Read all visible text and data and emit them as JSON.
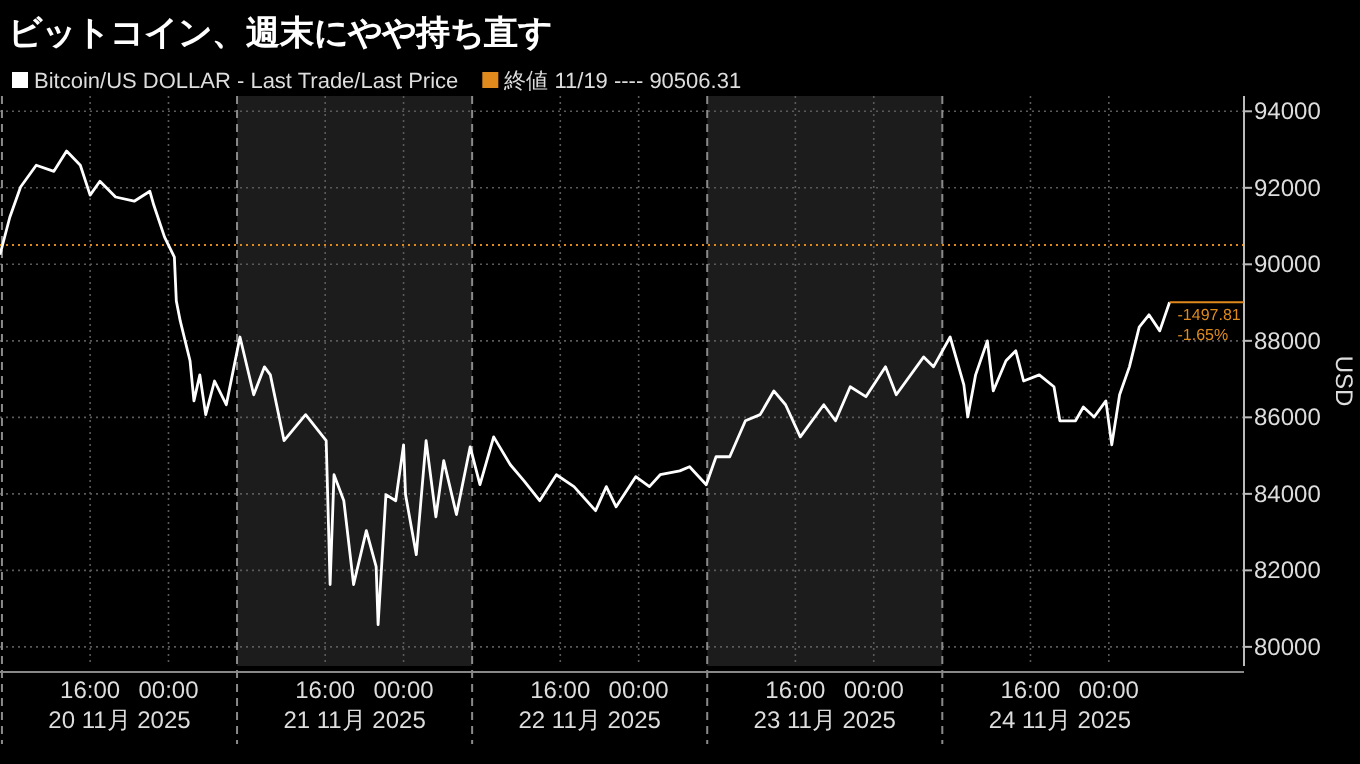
{
  "chart_data": {
    "type": "line",
    "title": "ビットコイン、週末にやや持ち直す",
    "ylabel": "USD",
    "xlim": [
      "2025-11-20T06:48",
      "2025-11-25T13:48"
    ],
    "ylim": [
      79500,
      94400
    ],
    "xticks": [
      {
        "value": "2025-11-20T16:00",
        "label": "16:00"
      },
      {
        "value": "2025-11-21T00:00",
        "label": "00:00"
      },
      {
        "value": "2025-11-21T16:00",
        "label": "16:00"
      },
      {
        "value": "2025-11-22T00:00",
        "label": "00:00"
      },
      {
        "value": "2025-11-22T16:00",
        "label": "16:00"
      },
      {
        "value": "2025-11-23T00:00",
        "label": "00:00"
      },
      {
        "value": "2025-11-23T16:00",
        "label": "16:00"
      },
      {
        "value": "2025-11-24T00:00",
        "label": "00:00"
      },
      {
        "value": "2025-11-24T16:00",
        "label": "16:00"
      },
      {
        "value": "2025-11-25T00:00",
        "label": "00:00"
      }
    ],
    "yticks": [
      80000,
      82000,
      84000,
      86000,
      88000,
      90000,
      92000,
      94000
    ],
    "grid": true,
    "legend": "top left",
    "line_style": "solid",
    "series": [
      {
        "name": "Bitcoin/US DOLLAR - Last Trade/Last Price",
        "color": "#ffffff",
        "x": [
          "2025-11-20T06:48",
          "2025-11-20T07:48",
          "2025-11-20T08:54",
          "2025-11-20T10:30",
          "2025-11-20T12:18",
          "2025-11-20T13:36",
          "2025-11-20T15:00",
          "2025-11-20T16:00",
          "2025-11-20T17:00",
          "2025-11-20T18:36",
          "2025-11-20T20:30",
          "2025-11-20T22:06",
          "2025-11-20T22:30",
          "2025-11-20T23:36",
          "2025-11-21T00:36",
          "2025-11-21T00:48",
          "2025-11-21T01:12",
          "2025-11-21T02:12",
          "2025-11-21T02:36",
          "2025-11-21T03:12",
          "2025-11-21T03:48",
          "2025-11-21T04:42",
          "2025-11-21T05:54",
          "2025-11-21T07:18",
          "2025-11-21T08:42",
          "2025-11-21T09:48",
          "2025-11-21T10:24",
          "2025-11-21T11:48",
          "2025-11-21T14:00",
          "2025-11-21T16:06",
          "2025-11-21T16:30",
          "2025-11-21T16:54",
          "2025-11-21T17:54",
          "2025-11-21T18:54",
          "2025-11-21T20:12",
          "2025-11-21T21:12",
          "2025-11-21T21:24",
          "2025-11-21T22:12",
          "2025-11-21T23:12",
          "2025-11-22T00:00",
          "2025-11-22T00:12",
          "2025-11-22T01:18",
          "2025-11-22T02:18",
          "2025-11-22T03:18",
          "2025-11-22T04:06",
          "2025-11-22T05:24",
          "2025-11-22T06:48",
          "2025-11-22T07:48",
          "2025-11-22T09:12",
          "2025-11-22T10:54",
          "2025-11-22T12:18",
          "2025-11-22T13:54",
          "2025-11-22T15:36",
          "2025-11-22T17:24",
          "2025-11-22T19:36",
          "2025-11-22T20:42",
          "2025-11-22T21:42",
          "2025-11-22T23:42",
          "2025-11-23T01:06",
          "2025-11-23T02:12",
          "2025-11-23T04:12",
          "2025-11-23T05:12",
          "2025-11-23T06:54",
          "2025-11-23T07:54",
          "2025-11-23T09:18",
          "2025-11-23T10:54",
          "2025-11-23T12:24",
          "2025-11-23T13:48",
          "2025-11-23T15:00",
          "2025-11-23T16:30",
          "2025-11-23T18:54",
          "2025-11-23T20:06",
          "2025-11-23T21:36",
          "2025-11-23T23:12",
          "2025-11-24T01:12",
          "2025-11-24T02:18",
          "2025-11-24T05:06",
          "2025-11-24T06:06",
          "2025-11-24T07:48",
          "2025-11-24T09:12",
          "2025-11-24T09:36",
          "2025-11-24T10:24",
          "2025-11-24T11:36",
          "2025-11-24T12:12",
          "2025-11-24T13:30",
          "2025-11-24T14:30",
          "2025-11-24T15:18",
          "2025-11-24T16:54",
          "2025-11-24T18:24",
          "2025-11-24T19:00",
          "2025-11-24T20:36",
          "2025-11-24T21:24",
          "2025-11-24T22:30",
          "2025-11-24T23:42",
          "2025-11-25T00:18",
          "2025-11-25T01:06",
          "2025-11-25T02:06",
          "2025-11-25T03:06",
          "2025-11-25T04:06",
          "2025-11-25T05:12",
          "2025-11-25T06:12"
        ],
        "values": [
          90250,
          91230,
          92020,
          92590,
          92430,
          92960,
          92590,
          91810,
          92170,
          91760,
          91650,
          91910,
          91550,
          90710,
          90190,
          89040,
          88520,
          87480,
          86430,
          87110,
          86070,
          86950,
          86330,
          88100,
          86590,
          87320,
          87110,
          85390,
          86070,
          85390,
          81630,
          84500,
          83820,
          81630,
          83040,
          82100,
          80580,
          83980,
          83820,
          85280,
          83980,
          82410,
          85390,
          83400,
          84870,
          83460,
          85230,
          84240,
          85490,
          84760,
          84340,
          83820,
          84500,
          84190,
          83560,
          84190,
          83660,
          84450,
          84190,
          84500,
          84600,
          84710,
          84240,
          84970,
          84970,
          85910,
          86070,
          86690,
          86330,
          85490,
          86330,
          85910,
          86800,
          86540,
          87320,
          86590,
          87580,
          87320,
          88100,
          86850,
          86010,
          87110,
          88000,
          86690,
          87480,
          87740,
          86950,
          87110,
          86800,
          85910,
          85910,
          86270,
          86010,
          86430,
          85280,
          86590,
          87320,
          88360,
          88680,
          88260,
          89010
        ]
      }
    ],
    "ref_lines": [
      {
        "axis": "y",
        "value": 90506.31,
        "label": "終値 11/19 ---- 90506.31",
        "color": "#e08a1e",
        "line_style": "dotted"
      },
      {
        "axis": "x",
        "value": "2025-11-20T07:00",
        "color": "#8a8a8a",
        "line_style": "dashed"
      },
      {
        "axis": "x",
        "value": "2025-11-21T07:00",
        "color": "#8a8a8a",
        "line_style": "dashed"
      },
      {
        "axis": "x",
        "value": "2025-11-22T07:00",
        "color": "#8a8a8a",
        "line_style": "dashed"
      },
      {
        "axis": "x",
        "value": "2025-11-23T07:00",
        "color": "#8a8a8a",
        "line_style": "dashed"
      },
      {
        "axis": "x",
        "value": "2025-11-24T07:00",
        "color": "#8a8a8a",
        "line_style": "dashed"
      }
    ],
    "bands": [
      {
        "axis": "x",
        "from": "2025-11-21T07:00",
        "to": "2025-11-22T07:00",
        "color": "#1c1c1c"
      },
      {
        "axis": "x",
        "from": "2025-11-23T07:00",
        "to": "2025-11-24T07:00",
        "color": "#1c1c1c"
      }
    ],
    "annotations": [
      {
        "text": "-1497.81",
        "x": "2025-11-25T06:12",
        "y": 89010
      },
      {
        "text": "-1.65%",
        "x": "2025-11-25T06:12",
        "y": 89010
      },
      "20 11月 2025",
      "21 11月 2025",
      "22 11月 2025",
      "23 11月 2025",
      "24 11月 2025"
    ]
  }
}
